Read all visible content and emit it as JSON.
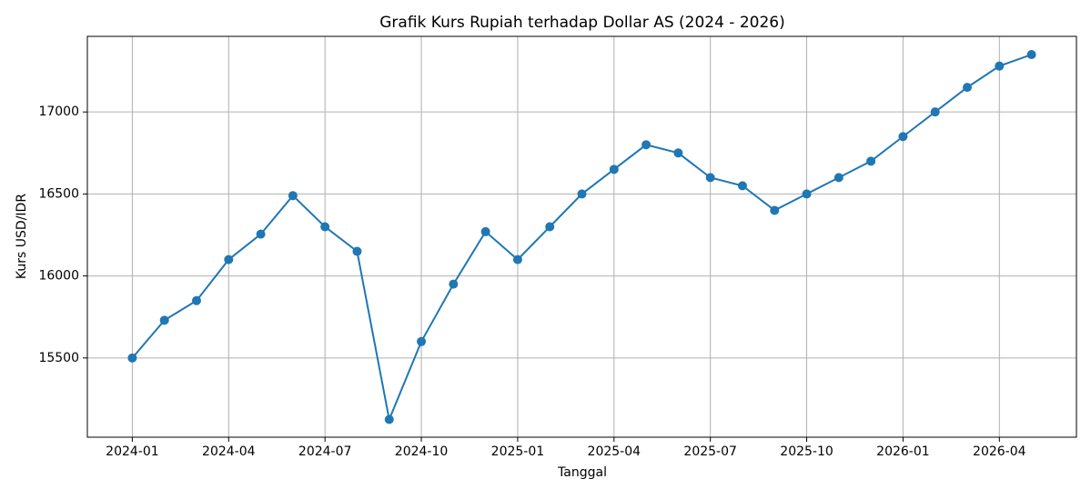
{
  "chart_data": {
    "type": "line",
    "title": "Grafik Kurs Rupiah terhadap Dollar AS (2024 - 2026)",
    "x_label": "Tanggal",
    "y_label": "Kurs USD/IDR",
    "x": [
      "2024-01",
      "2024-02",
      "2024-03",
      "2024-04",
      "2024-05",
      "2024-06",
      "2024-07",
      "2024-08",
      "2024-09",
      "2024-10",
      "2024-11",
      "2024-12",
      "2025-01",
      "2025-02",
      "2025-03",
      "2025-04",
      "2025-05",
      "2025-06",
      "2025-07",
      "2025-08",
      "2025-09",
      "2025-10",
      "2025-11",
      "2025-12",
      "2026-01",
      "2026-02",
      "2026-03",
      "2026-04",
      "2026-05"
    ],
    "series": [
      {
        "color": "#1f77b4",
        "values": [
          15500,
          15730,
          15850,
          16100,
          16255,
          16490,
          16300,
          16150,
          15125,
          15600,
          15950,
          16270,
          16100,
          16300,
          16500,
          16650,
          16800,
          16750,
          16600,
          16550,
          16400,
          16500,
          16600,
          16700,
          16850,
          17000,
          17150,
          17280,
          17350
        ]
      }
    ],
    "ylim": [
      15017,
      17461
    ],
    "yticks": [
      15500,
      16000,
      16500,
      17000
    ],
    "xticks": [
      "2024-01",
      "2024-04",
      "2024-07",
      "2024-10",
      "2025-01",
      "2025-04",
      "2025-07",
      "2025-10",
      "2026-01",
      "2026-04"
    ],
    "grid": true,
    "markers": true
  }
}
